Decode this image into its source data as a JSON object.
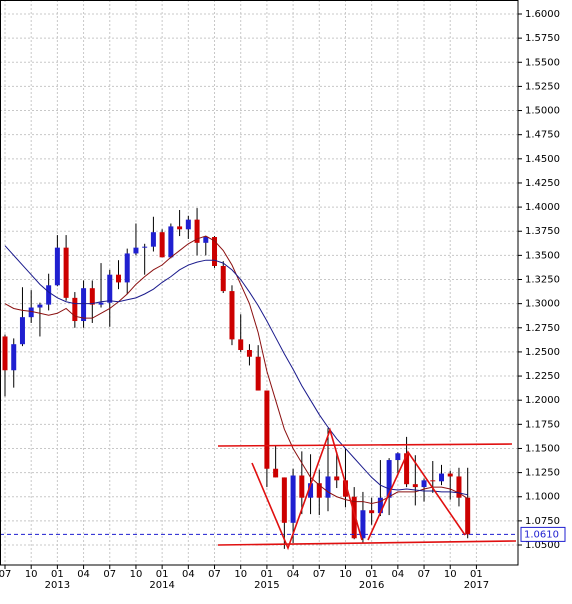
{
  "chart_data": {
    "type": "candlestick",
    "categories": [
      "07",
      null,
      null,
      "10",
      null,
      null,
      "01",
      null,
      null,
      "04",
      null,
      null,
      "07",
      null,
      null,
      "10",
      null,
      null,
      "01",
      null,
      null,
      "04",
      null,
      null,
      "07",
      null,
      null,
      "10",
      null,
      null,
      "01",
      null,
      null,
      "04",
      null,
      null,
      "07",
      null,
      null,
      "10",
      null,
      null,
      "01",
      null,
      null,
      "04",
      null,
      null,
      "07",
      null,
      null,
      "10",
      null,
      null,
      "01"
    ],
    "year_labels": [
      null,
      null,
      null,
      null,
      null,
      null,
      "2013",
      null,
      null,
      null,
      null,
      null,
      null,
      null,
      null,
      null,
      null,
      null,
      "2014",
      null,
      null,
      null,
      null,
      null,
      null,
      null,
      null,
      null,
      null,
      null,
      "2015",
      null,
      null,
      null,
      null,
      null,
      null,
      null,
      null,
      null,
      null,
      null,
      "2016",
      null,
      null,
      null,
      null,
      null,
      null,
      null,
      null,
      null,
      null,
      null,
      "2017"
    ],
    "open": [
      1.266,
      1.231,
      1.258,
      1.286,
      1.296,
      1.299,
      1.319,
      1.358,
      1.306,
      1.282,
      1.316,
      1.299,
      1.301,
      1.33,
      1.322,
      1.352,
      1.358,
      1.359,
      1.374,
      1.348,
      1.38,
      1.377,
      1.387,
      1.363,
      1.369,
      1.339,
      1.313,
      1.263,
      1.252,
      1.245,
      1.21,
      1.129,
      1.12,
      1.073,
      1.122,
      1.099,
      1.114,
      1.099,
      1.121,
      1.117,
      1.1,
      1.057,
      1.086,
      1.083,
      1.099,
      1.138,
      1.145,
      1.113,
      1.11,
      1.117,
      1.116,
      1.124,
      1.121,
      1.099,
      null
    ],
    "high": [
      1.268,
      1.264,
      1.317,
      1.314,
      1.301,
      1.331,
      1.371,
      1.371,
      1.312,
      1.324,
      1.324,
      1.342,
      1.335,
      1.345,
      1.357,
      1.383,
      1.362,
      1.39,
      1.377,
      1.383,
      1.397,
      1.391,
      1.399,
      1.37,
      1.37,
      1.344,
      1.319,
      1.289,
      1.258,
      1.257,
      1.21,
      1.153,
      1.12,
      1.129,
      1.147,
      1.144,
      1.128,
      1.171,
      1.146,
      1.15,
      1.11,
      1.105,
      1.099,
      1.138,
      1.14,
      1.146,
      1.162,
      1.143,
      1.119,
      1.137,
      1.133,
      1.127,
      1.13,
      1.13,
      null
    ],
    "low": [
      1.204,
      1.213,
      1.256,
      1.28,
      1.266,
      1.293,
      1.318,
      1.303,
      1.275,
      1.275,
      1.28,
      1.296,
      1.276,
      1.315,
      1.31,
      1.35,
      1.33,
      1.354,
      1.348,
      1.347,
      1.37,
      1.367,
      1.35,
      1.35,
      1.337,
      1.311,
      1.257,
      1.25,
      1.236,
      1.21,
      1.11,
      1.12,
      1.046,
      1.052,
      1.082,
      1.082,
      1.081,
      1.085,
      1.109,
      1.089,
      1.056,
      1.052,
      1.071,
      1.08,
      1.081,
      1.122,
      1.11,
      1.091,
      1.095,
      1.104,
      1.112,
      1.097,
      1.09,
      1.057,
      null
    ],
    "close": [
      1.231,
      1.258,
      1.286,
      1.296,
      1.299,
      1.319,
      1.358,
      1.306,
      1.282,
      1.316,
      1.299,
      1.301,
      1.33,
      1.322,
      1.352,
      1.358,
      1.359,
      1.374,
      1.348,
      1.38,
      1.377,
      1.387,
      1.363,
      1.369,
      1.339,
      1.313,
      1.263,
      1.252,
      1.245,
      1.21,
      1.129,
      1.12,
      1.073,
      1.122,
      1.099,
      1.114,
      1.099,
      1.121,
      1.117,
      1.1,
      1.057,
      1.086,
      1.083,
      1.099,
      1.138,
      1.145,
      1.113,
      1.11,
      1.117,
      1.116,
      1.124,
      1.121,
      1.099,
      1.061,
      null
    ],
    "up_color": "#1f1fd0",
    "down_color": "#cc0000",
    "overlays": [
      {
        "color": "#8b1010",
        "values": [
          1.3,
          1.295,
          1.293,
          1.292,
          1.29,
          1.288,
          1.29,
          1.295,
          1.287,
          1.285,
          1.285,
          1.29,
          1.295,
          1.302,
          1.31,
          1.32,
          1.328,
          1.335,
          1.34,
          1.348,
          1.355,
          1.362,
          1.367,
          1.37,
          1.365,
          1.355,
          1.34,
          1.32,
          1.3,
          1.27,
          1.23,
          1.2,
          1.17,
          1.15,
          1.135,
          1.12,
          1.112,
          1.105,
          1.1,
          1.097,
          1.095,
          1.095,
          1.093,
          1.095,
          1.1,
          1.105,
          1.105,
          1.105,
          1.108,
          1.11,
          1.11,
          1.108,
          1.104,
          1.098,
          null
        ]
      },
      {
        "color": "#1a1a8c",
        "values": [
          1.36,
          1.35,
          1.34,
          1.33,
          1.32,
          1.312,
          1.306,
          1.302,
          1.3,
          1.3,
          1.3,
          1.302,
          1.303,
          1.302,
          1.304,
          1.306,
          1.31,
          1.315,
          1.322,
          1.328,
          1.335,
          1.34,
          1.343,
          1.345,
          1.345,
          1.342,
          1.335,
          1.325,
          1.312,
          1.298,
          1.282,
          1.265,
          1.248,
          1.232,
          1.215,
          1.2,
          1.185,
          1.172,
          1.16,
          1.15,
          1.14,
          1.13,
          1.12,
          1.112,
          1.108,
          1.107,
          1.108,
          1.107,
          1.106,
          1.106,
          1.105,
          1.105,
          1.104,
          1.102,
          null
        ]
      }
    ],
    "last_price": {
      "value": 1.061,
      "label": "1.0610"
    },
    "ylim": [
      1.0293,
      1.6145
    ],
    "yticks": [
      {
        "value": 1.6,
        "label": "1.6000"
      },
      {
        "value": 1.575,
        "label": "1.5750"
      },
      {
        "value": 1.55,
        "label": "1.5500"
      },
      {
        "value": 1.525,
        "label": "1.5250"
      },
      {
        "value": 1.5,
        "label": "1.5000"
      },
      {
        "value": 1.475,
        "label": "1.4750"
      },
      {
        "value": 1.45,
        "label": "1.4500"
      },
      {
        "value": 1.425,
        "label": "1.4250"
      },
      {
        "value": 1.4,
        "label": "1.4000"
      },
      {
        "value": 1.375,
        "label": "1.3750"
      },
      {
        "value": 1.35,
        "label": "1.3500"
      },
      {
        "value": 1.325,
        "label": "1.3250"
      },
      {
        "value": 1.3,
        "label": "1.3000"
      },
      {
        "value": 1.275,
        "label": "1.2750"
      },
      {
        "value": 1.25,
        "label": "1.2500"
      },
      {
        "value": 1.225,
        "label": "1.2250"
      },
      {
        "value": 1.2,
        "label": "1.2000"
      },
      {
        "value": 1.175,
        "label": "1.1750"
      },
      {
        "value": 1.15,
        "label": "1.1500"
      },
      {
        "value": 1.125,
        "label": "1.1250"
      },
      {
        "value": 1.1,
        "label": "1.1000"
      },
      {
        "value": 1.075,
        "label": "1.0750"
      },
      {
        "value": 1.05,
        "label": "1.0500"
      }
    ],
    "grid": true
  }
}
